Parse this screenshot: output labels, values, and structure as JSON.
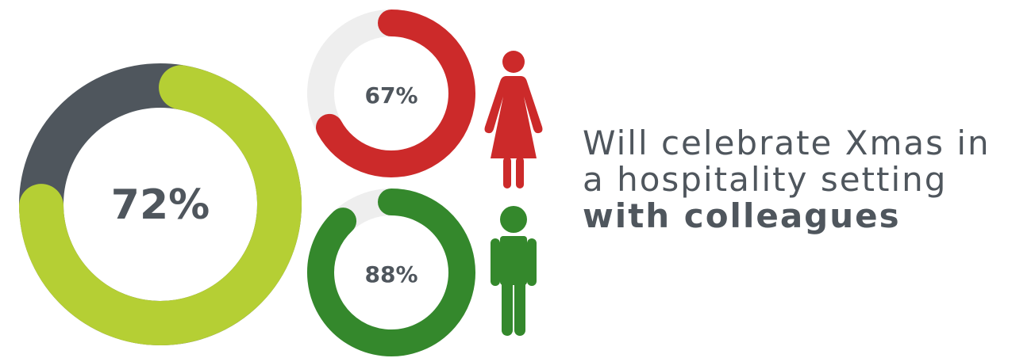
{
  "stats": {
    "overall": {
      "label": "72%",
      "value": 72,
      "color": "#b5cf34",
      "remainder_color": "#4f565d"
    },
    "women": {
      "label": "67%",
      "value": 67,
      "color": "#cc2a2a",
      "remainder_color": "#eeeeee"
    },
    "men": {
      "label": "88%",
      "value": 88,
      "color": "#34882c",
      "remainder_color": "#eeeeee"
    }
  },
  "icons": {
    "woman": "woman-icon",
    "man": "man-icon"
  },
  "caption": {
    "line1": "Will celebrate Xmas in",
    "line2": "a hospitality setting",
    "line3": "with colleagues"
  }
}
